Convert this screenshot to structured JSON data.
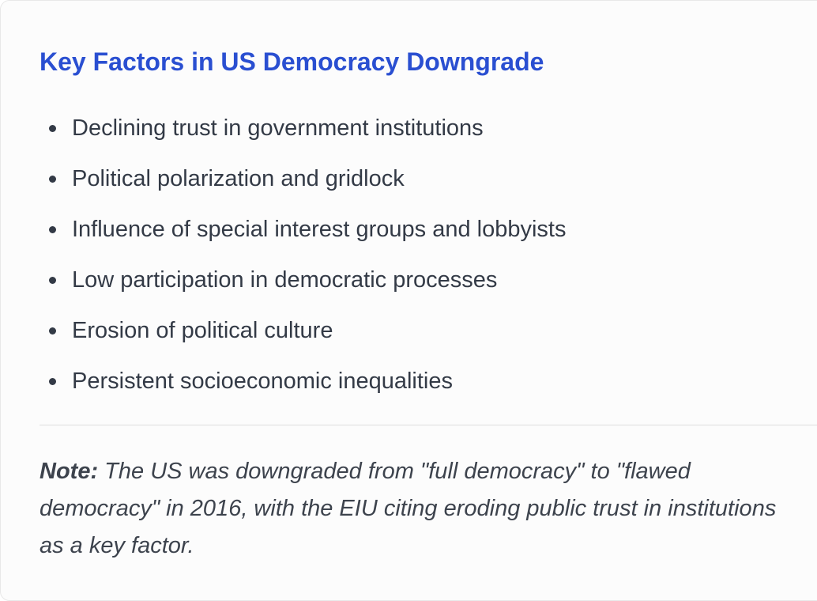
{
  "title": "Key Factors in US Democracy Downgrade",
  "factors": [
    "Declining trust in government institutions",
    "Political polarization and gridlock",
    "Influence of special interest groups and lobbyists",
    "Low participation in democratic processes",
    "Erosion of political culture",
    "Persistent socioeconomic inequalities"
  ],
  "note": {
    "label": "Note:",
    "text": "The US was downgraded from \"full democracy\" to \"flawed democracy\" in 2016, with the EIU citing eroding public trust in institutions as a key factor."
  },
  "colors": {
    "title": "#2a4fd1",
    "body_text": "#333a46",
    "note_text": "#3d434d",
    "divider": "#dedede",
    "card_background": "#fcfcfc"
  }
}
